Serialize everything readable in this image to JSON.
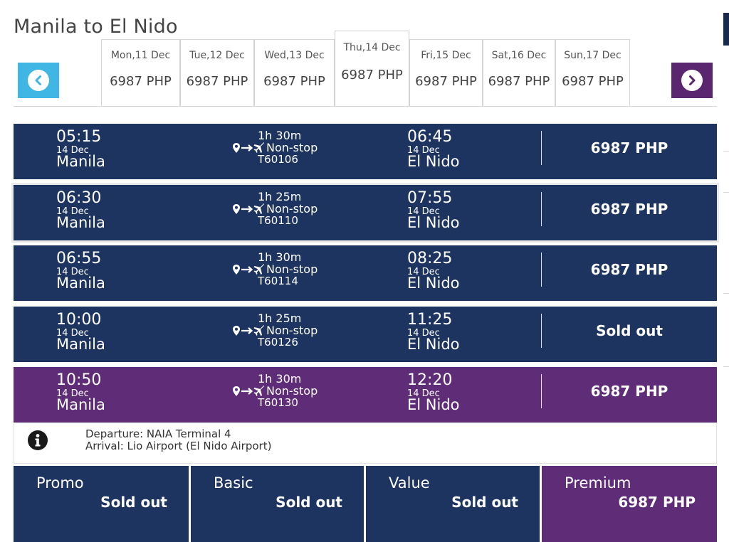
{
  "page": {
    "title": "Manila to El Nido"
  },
  "date_nav": {
    "prev_icon": "chevron-left-icon",
    "next_icon": "chevron-right-icon",
    "tabs": [
      {
        "day": "Mon,11 Dec",
        "price": "6987 PHP"
      },
      {
        "day": "Tue,12 Dec",
        "price": "6987 PHP"
      },
      {
        "day": "Wed,13 Dec",
        "price": "6987 PHP"
      },
      {
        "day": "Thu,14 Dec",
        "price": "6987 PHP"
      },
      {
        "day": "Fri,15 Dec",
        "price": "6987 PHP"
      },
      {
        "day": "Sat,16 Dec",
        "price": "6987 PHP"
      },
      {
        "day": "Sun,17 Dec",
        "price": "6987 PHP"
      }
    ],
    "active_index": 3
  },
  "flights": [
    {
      "dep_time": "05:15",
      "dep_date": "14 Dec",
      "dep_city": "Manila",
      "duration": "1h 30m",
      "stops": "Non-stop",
      "code": "T60106",
      "arr_time": "06:45",
      "arr_date": "14 Dec",
      "arr_city": "El Nido",
      "price": "6987 PHP"
    },
    {
      "dep_time": "06:30",
      "dep_date": "14 Dec",
      "dep_city": "Manila",
      "duration": "1h 25m",
      "stops": "Non-stop",
      "code": "T60110",
      "arr_time": "07:55",
      "arr_date": "14 Dec",
      "arr_city": "El Nido",
      "price": "6987 PHP"
    },
    {
      "dep_time": "06:55",
      "dep_date": "14 Dec",
      "dep_city": "Manila",
      "duration": "1h 30m",
      "stops": "Non-stop",
      "code": "T60114",
      "arr_time": "08:25",
      "arr_date": "14 Dec",
      "arr_city": "El Nido",
      "price": "6987 PHP"
    },
    {
      "dep_time": "10:00",
      "dep_date": "14 Dec",
      "dep_city": "Manila",
      "duration": "1h 25m",
      "stops": "Non-stop",
      "code": "T60126",
      "arr_time": "11:25",
      "arr_date": "14 Dec",
      "arr_city": "El Nido",
      "price": "Sold out"
    },
    {
      "dep_time": "10:50",
      "dep_date": "14 Dec",
      "dep_city": "Manila",
      "duration": "1h 30m",
      "stops": "Non-stop",
      "code": "T60130",
      "arr_time": "12:20",
      "arr_date": "14 Dec",
      "arr_city": "El Nido",
      "price": "6987 PHP"
    }
  ],
  "selected_flight_index": 4,
  "info": {
    "icon": "info-icon",
    "departure": "Departure: NAIA Terminal 4",
    "arrival": "Arrival: Lio Airport (El Nido Airport)"
  },
  "fares": [
    {
      "name": "Promo",
      "status": "Sold out"
    },
    {
      "name": "Basic",
      "status": "Sold out"
    },
    {
      "name": "Value",
      "status": "Sold out"
    },
    {
      "name": "Premium",
      "status": "6987 PHP"
    }
  ],
  "colors": {
    "row": "#1e3460",
    "selected": "#5f2c78",
    "prev_button": "#3fb6e4",
    "next_button": "#5b2670"
  }
}
